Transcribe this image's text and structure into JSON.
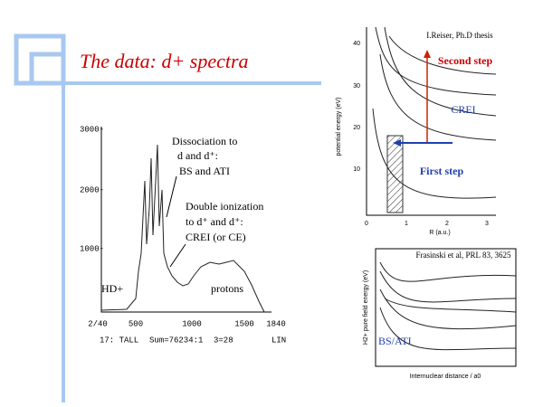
{
  "slide": {
    "title": "The data: d+ spectra",
    "left_plot": {
      "yticks": [
        "3000-",
        "2000-",
        "1000-"
      ],
      "xticks": [
        "2/40",
        "500",
        "1000",
        "1500",
        "1840"
      ],
      "footer": [
        "17: TALL",
        "Sum=76234:1",
        "3=28",
        "LIN"
      ],
      "annotations": {
        "dissociation": [
          "Dissociation to",
          "d and d⁺:",
          "BS and ATI"
        ],
        "double_ionization": [
          "Double ionization",
          "to d⁺ and d⁺:",
          "CREI (or CE)"
        ],
        "hd": "HD+",
        "protons": "protons"
      }
    },
    "top_right_plot": {
      "credit": "I.Reiser, Ph.D thesis",
      "second_step": "Second step",
      "crei": "CREI",
      "first_step": "First step",
      "ylabel": "potential energy (eV)",
      "xlabel": "R (a.u.)",
      "yticks": [
        "10",
        "20",
        "30",
        "40"
      ],
      "xticks": [
        "0",
        "1",
        "2",
        "3"
      ]
    },
    "bottom_right_plot": {
      "credit": "Frasinski et al, PRL 83, 3625",
      "bs_ati": "BS/ATI",
      "xlabel": "Internuclear distance / a0",
      "ylabel": "H2+ pure field energy (eV)"
    }
  }
}
